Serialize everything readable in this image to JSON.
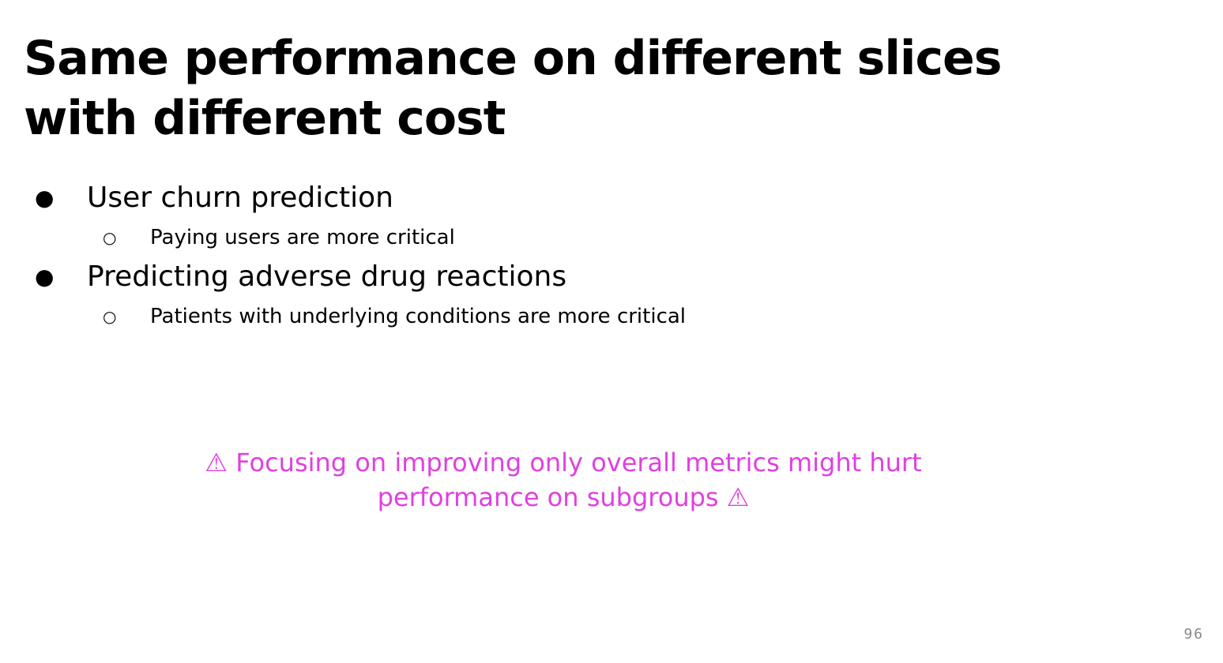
{
  "slide": {
    "title": "Same performance on different slices with different cost",
    "bullets": [
      {
        "marker": "●",
        "text": "User churn prediction",
        "sub_marker": "○",
        "sub_text": "Paying users are more critical"
      },
      {
        "marker": "●",
        "text": "Predicting adverse drug reactions",
        "sub_marker": "○",
        "sub_text": "Patients with underlying conditions are more critical"
      }
    ],
    "callout": "⚠ Focusing on improving only overall metrics might hurt performance on subgroups ⚠",
    "callout_color": "#e040e0",
    "page_number": "96"
  }
}
